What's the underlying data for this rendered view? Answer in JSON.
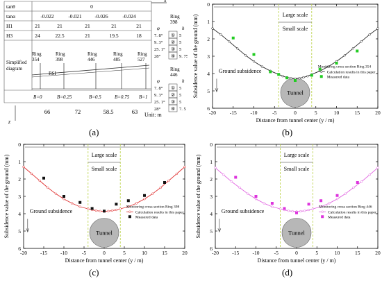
{
  "table_panel": {
    "caption": "(a)",
    "rows": [
      {
        "label": "tanθ",
        "cells": [
          "0"
        ]
      },
      {
        "label": "tanα",
        "cells": [
          "-0.022",
          "-0.021",
          "-0.026",
          "-0.024"
        ]
      },
      {
        "label": "H1",
        "cells": [
          "21",
          "21",
          "21",
          "21",
          "21"
        ]
      },
      {
        "label": "H3",
        "cells": [
          "24",
          "22.5",
          "21",
          "19.5",
          "18"
        ]
      }
    ],
    "simplified_label": [
      "Simplified",
      "diagram"
    ],
    "rings": [
      "Ring\n354",
      "Ring\n398",
      "Ring\n446",
      "Ring\n485",
      "Ring\n527"
    ],
    "rsi_label": "RSI",
    "b_values": [
      "B=0",
      "B=0.25",
      "B=0.5",
      "B=0.75",
      "B=1"
    ],
    "spacings": [
      "66",
      "72",
      "58.5",
      "63"
    ],
    "unit": "Unit: m",
    "axis_x": "x",
    "axis_z": "z",
    "ring_398": {
      "title": [
        "Ring",
        "398"
      ],
      "phi": "φ",
      "h": "h",
      "layers": [
        {
          "angle": "7. 8°",
          "num": "①",
          "h": "5"
        },
        {
          "angle": "9. 3°",
          "num": "②",
          "h": "5"
        },
        {
          "angle": "25. 1°",
          "num": "③",
          "h": "5"
        },
        {
          "angle": "28°",
          "num": "④",
          "h": "9. 75"
        }
      ]
    },
    "ring_446": {
      "title": [
        "Ring",
        "446"
      ],
      "phi": "φ",
      "h": "h",
      "layers": [
        {
          "angle": "7. 8°",
          "num": "①",
          "h": "5"
        },
        {
          "angle": "9. 3°",
          "num": "②",
          "h": "5"
        },
        {
          "angle": "25. 1°",
          "num": "③",
          "h": "5"
        },
        {
          "angle": "28°",
          "num": "④",
          "h": "7. 5"
        }
      ]
    }
  },
  "labels": {
    "large_scale": "Large scale",
    "small_scale": "Small scale",
    "ground_subsidence": "Ground subsidence",
    "tunnel": "Tunnel",
    "calc_results": "Calculation results in this paper",
    "measured": "Measured data"
  },
  "chart_data": [
    {
      "type": "scatter",
      "caption": "(b)",
      "legend_title": "Monitoring cross section Ring 354",
      "xlabel": "Distance from tunnel center (y / m)",
      "ylabel": "Subsidence value of the ground (mm)",
      "xlim": [
        -20,
        20
      ],
      "ylim": [
        0,
        6
      ],
      "xticks": [
        -20,
        -15,
        -10,
        -5,
        0,
        5,
        10,
        15,
        20
      ],
      "yticks": [
        0,
        1,
        2,
        3,
        4,
        5,
        6
      ],
      "line_color": "#222222",
      "marker_color": "#22cc22",
      "calc": [
        [
          -20,
          1.4
        ],
        [
          -18,
          1.75
        ],
        [
          -16,
          2.15
        ],
        [
          -14,
          2.55
        ],
        [
          -12,
          2.95
        ],
        [
          -10,
          3.3
        ],
        [
          -8,
          3.6
        ],
        [
          -6,
          3.85
        ],
        [
          -4,
          4.05
        ],
        [
          -3,
          4.15
        ],
        [
          -2,
          4.22
        ],
        [
          -1,
          4.27
        ],
        [
          0,
          4.3
        ],
        [
          1,
          4.27
        ],
        [
          2,
          4.22
        ],
        [
          3,
          4.15
        ],
        [
          4,
          4.05
        ],
        [
          6,
          3.85
        ],
        [
          8,
          3.6
        ],
        [
          10,
          3.3
        ],
        [
          12,
          2.95
        ],
        [
          14,
          2.55
        ],
        [
          16,
          2.15
        ],
        [
          18,
          1.75
        ],
        [
          20,
          1.4
        ]
      ],
      "measured": [
        [
          -15,
          1.95
        ],
        [
          -10,
          2.9
        ],
        [
          -6,
          3.9
        ],
        [
          -4,
          4.05
        ],
        [
          -2,
          4.25
        ],
        [
          0,
          4.4
        ],
        [
          4,
          4.1
        ],
        [
          6,
          3.75
        ],
        [
          10,
          3.4
        ],
        [
          15,
          2.7
        ]
      ]
    },
    {
      "type": "scatter",
      "caption": "(c)",
      "legend_title": "Monitoring cross section Ring 398",
      "xlabel": "Distance from tunnel center (y / m)",
      "ylabel": "Subsidence value of the ground (mm)",
      "xlim": [
        -20,
        20
      ],
      "ylim": [
        0,
        6
      ],
      "xticks": [
        -20,
        -15,
        -10,
        -5,
        0,
        5,
        10,
        15,
        20
      ],
      "yticks": [
        0,
        1,
        2,
        3,
        4,
        5,
        6
      ],
      "line_color": "#e03030",
      "marker_color": "#111111",
      "calc": [
        [
          -20,
          1.3
        ],
        [
          -18,
          1.7
        ],
        [
          -16,
          2.1
        ],
        [
          -14,
          2.5
        ],
        [
          -12,
          2.85
        ],
        [
          -10,
          3.15
        ],
        [
          -8,
          3.4
        ],
        [
          -6,
          3.6
        ],
        [
          -4,
          3.72
        ],
        [
          -3,
          3.78
        ],
        [
          -2,
          3.82
        ],
        [
          -1,
          3.85
        ],
        [
          0,
          3.87
        ],
        [
          1,
          3.85
        ],
        [
          2,
          3.82
        ],
        [
          3,
          3.78
        ],
        [
          4,
          3.72
        ],
        [
          6,
          3.6
        ],
        [
          8,
          3.4
        ],
        [
          10,
          3.15
        ],
        [
          12,
          2.85
        ],
        [
          14,
          2.5
        ],
        [
          16,
          2.1
        ],
        [
          18,
          1.7
        ],
        [
          20,
          1.3
        ]
      ],
      "measured": [
        [
          -15,
          1.95
        ],
        [
          -10,
          3.0
        ],
        [
          -6,
          3.35
        ],
        [
          -3,
          3.7
        ],
        [
          0,
          3.85
        ],
        [
          3,
          3.45
        ],
        [
          6,
          3.25
        ],
        [
          10,
          2.95
        ],
        [
          15,
          2.2
        ]
      ]
    },
    {
      "type": "scatter",
      "caption": "(d)",
      "legend_title": "Monitoring cross section Ring 446",
      "xlabel": "Distance from tunnel center (y / m)",
      "ylabel": "Subsidence value of the ground (mm)",
      "xlim": [
        -20,
        20
      ],
      "ylim": [
        0,
        6
      ],
      "xticks": [
        -20,
        -15,
        -10,
        -5,
        0,
        5,
        10,
        15,
        20
      ],
      "yticks": [
        0,
        1,
        2,
        3,
        4,
        5,
        6
      ],
      "line_color": "#e060e0",
      "marker_color": "#dd33dd",
      "calc": [
        [
          -20,
          1.35
        ],
        [
          -18,
          1.75
        ],
        [
          -16,
          2.15
        ],
        [
          -14,
          2.5
        ],
        [
          -12,
          2.85
        ],
        [
          -10,
          3.15
        ],
        [
          -8,
          3.4
        ],
        [
          -6,
          3.6
        ],
        [
          -4,
          3.72
        ],
        [
          -3,
          3.78
        ],
        [
          -2,
          3.83
        ],
        [
          -1,
          3.86
        ],
        [
          0,
          3.88
        ],
        [
          1,
          3.86
        ],
        [
          2,
          3.83
        ],
        [
          3,
          3.78
        ],
        [
          4,
          3.72
        ],
        [
          6,
          3.6
        ],
        [
          8,
          3.4
        ],
        [
          10,
          3.15
        ],
        [
          12,
          2.85
        ],
        [
          14,
          2.5
        ],
        [
          16,
          2.15
        ],
        [
          18,
          1.75
        ],
        [
          20,
          1.35
        ]
      ],
      "measured": [
        [
          -15,
          1.9
        ],
        [
          -10,
          3.0
        ],
        [
          -6,
          3.4
        ],
        [
          -3,
          3.7
        ],
        [
          0,
          3.95
        ],
        [
          3,
          3.45
        ],
        [
          6,
          3.25
        ],
        [
          10,
          2.95
        ],
        [
          15,
          2.2
        ]
      ]
    }
  ]
}
